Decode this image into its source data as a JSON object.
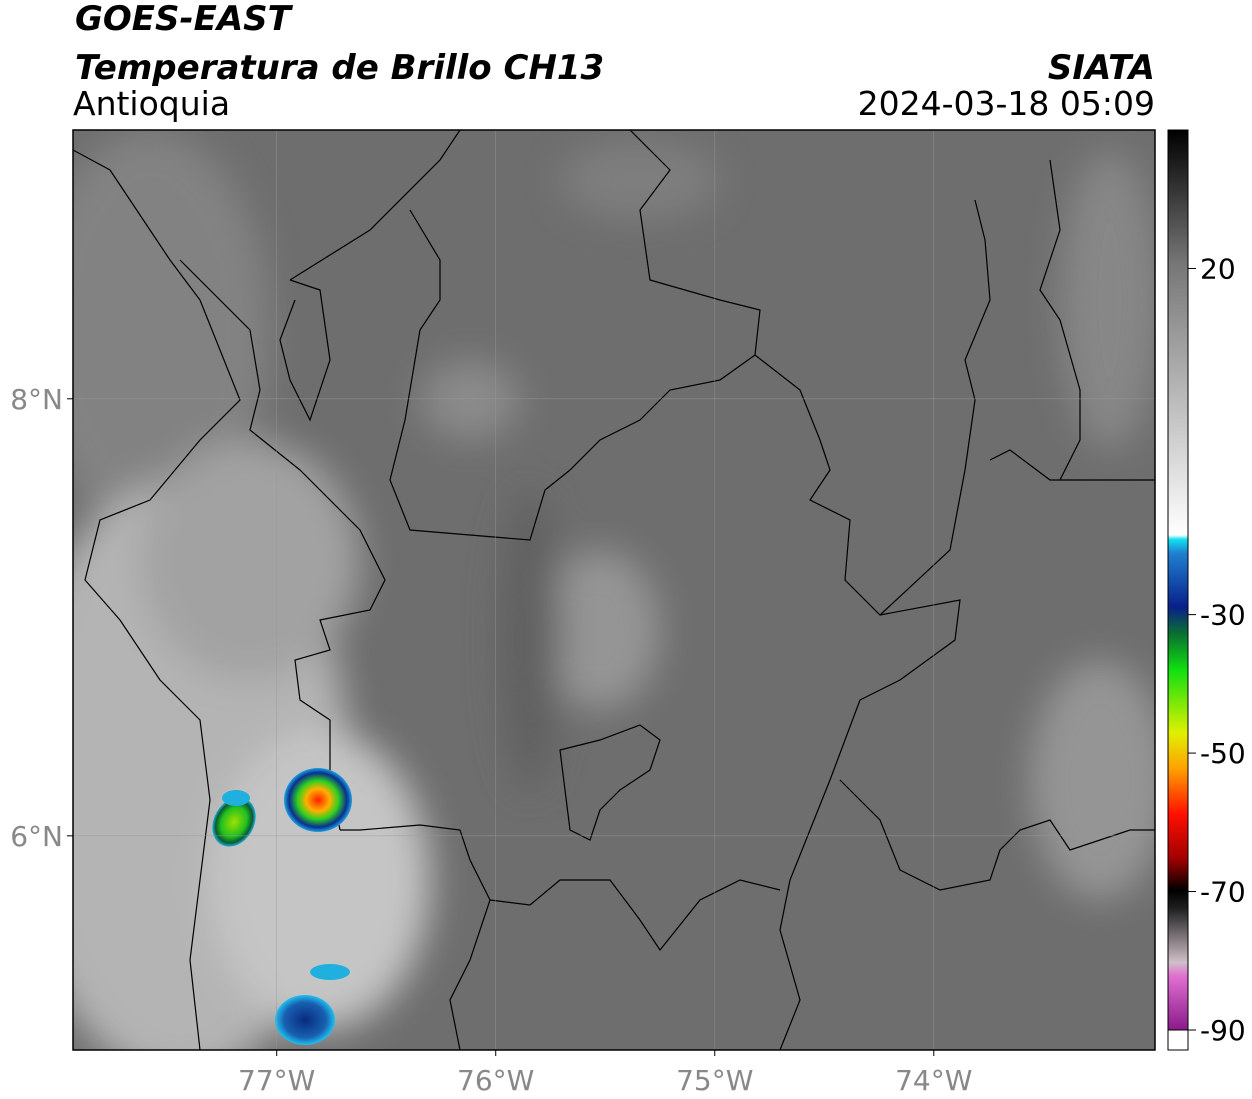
{
  "header": {
    "title": "GOES-EAST",
    "subtitle": "Temperatura de Brillo CH13",
    "region": "Antioquia",
    "source": "SIATA",
    "datetime": "2024-03-18 05:09"
  },
  "map": {
    "lonlim": [
      -77.93,
      -72.99
    ],
    "latlim": [
      5.02,
      9.23
    ],
    "xticks": [
      {
        "value": -77,
        "label": "77°W"
      },
      {
        "value": -76,
        "label": "76°W"
      },
      {
        "value": -75,
        "label": "75°W"
      },
      {
        "value": -74,
        "label": "74°W"
      }
    ],
    "yticks": [
      {
        "value": 8,
        "label": "8°N"
      },
      {
        "value": 6,
        "label": "6°N"
      }
    ],
    "grid": true
  },
  "colorbar": {
    "lim": [
      -90,
      40
    ],
    "ticks": [
      20,
      -30,
      -50,
      -70,
      -90
    ]
  }
}
